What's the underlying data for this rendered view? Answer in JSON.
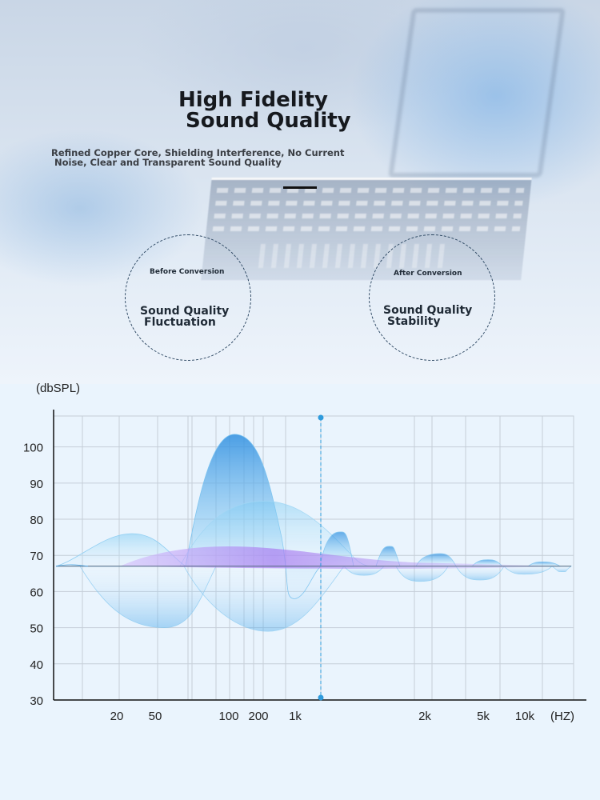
{
  "header": {
    "title_line1": "High Fidelity",
    "title_line2": "Sound Quality",
    "subtitle_line1": "Refined Copper Core, Shielding Interference, No Current",
    "subtitle_line2": "Noise, Clear and Transparent Sound Quality"
  },
  "comparison": {
    "before": {
      "label": "Before Conversion",
      "line1": "Sound Quality",
      "line2": "Fluctuation"
    },
    "after": {
      "label": "After Conversion",
      "line1": "Sound Quality",
      "line2": "Stability"
    }
  },
  "chart_data": {
    "type": "area",
    "ylabel": "(dbSPL)",
    "xlabel": "(HZ)",
    "y_ticks": [
      100,
      90,
      80,
      70,
      60,
      50,
      40,
      30
    ],
    "ylim": [
      30,
      109
    ],
    "x_ticks": [
      "20",
      "50",
      "100",
      "200",
      "1k",
      "2k",
      "5k",
      "10k"
    ],
    "baseline": 67,
    "marker_position": "1k",
    "grid": true,
    "colors": {
      "wave_blue": "#3f9fe6",
      "wave_light": "#8fd0f5",
      "wave_purple": "#b08cf2",
      "marker": "#2f9bdc",
      "grid": "#c5ced8"
    }
  }
}
